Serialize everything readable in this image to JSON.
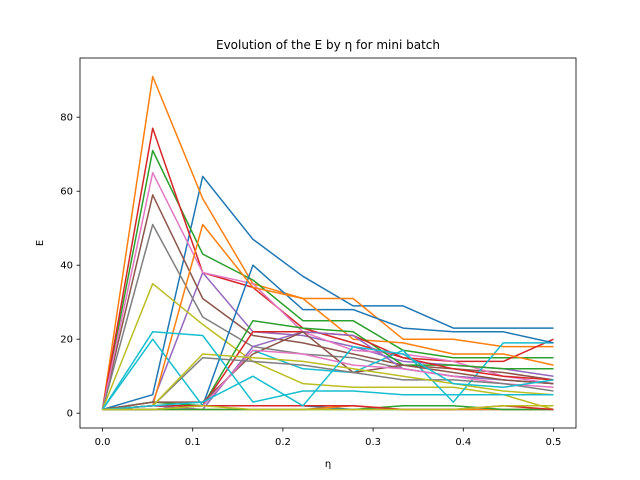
{
  "chart_data": {
    "type": "line",
    "title": "Evolution of the E by η for mini batch",
    "xlabel": "η",
    "ylabel": "E",
    "xlim": [
      -0.025,
      0.525
    ],
    "ylim": [
      -4,
      96
    ],
    "xticks": [
      0.0,
      0.1,
      0.2,
      0.3,
      0.4,
      0.5
    ],
    "xtick_labels": [
      "0.0",
      "0.1",
      "0.2",
      "0.3",
      "0.4",
      "0.5"
    ],
    "yticks": [
      0,
      20,
      40,
      60,
      80
    ],
    "ytick_labels": [
      "0",
      "20",
      "40",
      "60",
      "80"
    ],
    "grid": false,
    "x": [
      0.0,
      0.0556,
      0.1111,
      0.1667,
      0.2222,
      0.2778,
      0.3333,
      0.3889,
      0.4444,
      0.5
    ],
    "series": [
      {
        "color": "#1f77b4",
        "values": [
          1,
          5,
          64,
          47,
          37,
          29,
          29,
          23,
          23,
          23
        ]
      },
      {
        "color": "#ff7f0e",
        "values": [
          1,
          91,
          58,
          35,
          31,
          31,
          20,
          20,
          18,
          18
        ]
      },
      {
        "color": "#2ca02c",
        "values": [
          1,
          71,
          43,
          36,
          25,
          25,
          17,
          15,
          15,
          15
        ]
      },
      {
        "color": "#d62728",
        "values": [
          1,
          77,
          38,
          34,
          23,
          19,
          15,
          14,
          14,
          20
        ]
      },
      {
        "color": "#9467bd",
        "values": [
          1,
          3,
          38,
          22,
          21,
          18,
          14,
          13,
          12,
          10
        ]
      },
      {
        "color": "#8c564b",
        "values": [
          1,
          59,
          31,
          21,
          19,
          16,
          13,
          12,
          11,
          9
        ]
      },
      {
        "color": "#e377c2",
        "values": [
          1,
          65,
          38,
          35,
          22,
          17,
          16,
          14,
          10,
          8
        ]
      },
      {
        "color": "#7f7f7f",
        "values": [
          1,
          51,
          26,
          18,
          16,
          15,
          12,
          10,
          9,
          8
        ]
      },
      {
        "color": "#bcbd22",
        "values": [
          1,
          35,
          24,
          14,
          8,
          7,
          7,
          7,
          5,
          1
        ]
      },
      {
        "color": "#17becf",
        "values": [
          1,
          20,
          2,
          17,
          12,
          11,
          17,
          3,
          19,
          19
        ]
      },
      {
        "color": "#1f77b4",
        "values": [
          1,
          2,
          2,
          40,
          28,
          28,
          23,
          22,
          22,
          19
        ]
      },
      {
        "color": "#ff7f0e",
        "values": [
          1,
          2,
          51,
          34,
          31,
          20,
          19,
          16,
          16,
          13
        ]
      },
      {
        "color": "#2ca02c",
        "values": [
          1,
          3,
          2,
          25,
          23,
          22,
          13,
          13,
          12,
          12
        ]
      },
      {
        "color": "#d62728",
        "values": [
          1,
          1,
          2,
          22,
          22,
          21,
          15,
          12,
          10,
          9
        ]
      },
      {
        "color": "#9467bd",
        "values": [
          1,
          2,
          1,
          18,
          22,
          21,
          12,
          10,
          9,
          8
        ]
      },
      {
        "color": "#8c564b",
        "values": [
          1,
          3,
          3,
          16,
          22,
          11,
          13,
          11,
          9,
          8
        ]
      },
      {
        "color": "#e377c2",
        "values": [
          1,
          2,
          2,
          17,
          16,
          13,
          12,
          10,
          8,
          7
        ]
      },
      {
        "color": "#7f7f7f",
        "values": [
          1,
          2,
          15,
          14,
          13,
          11,
          9,
          9,
          8,
          6
        ]
      },
      {
        "color": "#bcbd22",
        "values": [
          1,
          2,
          16,
          15,
          14,
          12,
          10,
          8,
          6,
          5
        ]
      },
      {
        "color": "#17becf",
        "values": [
          1,
          22,
          21,
          3,
          6,
          6,
          5,
          5,
          5,
          5
        ]
      },
      {
        "color": "#1f77b4",
        "values": [
          1,
          1,
          2,
          2,
          2,
          1,
          1,
          1,
          1,
          1
        ]
      },
      {
        "color": "#ff7f0e",
        "values": [
          1,
          1,
          1,
          1,
          1,
          2,
          1,
          1,
          1,
          1
        ]
      },
      {
        "color": "#2ca02c",
        "values": [
          1,
          1,
          1,
          1,
          1,
          1,
          2,
          2,
          1,
          1
        ]
      },
      {
        "color": "#d62728",
        "values": [
          1,
          2,
          2,
          2,
          2,
          2,
          1,
          1,
          2,
          1
        ]
      },
      {
        "color": "#17becf",
        "values": [
          1,
          2,
          3,
          10,
          2,
          18,
          16,
          8,
          7,
          9
        ]
      },
      {
        "color": "#bcbd22",
        "values": [
          1,
          1,
          2,
          1,
          1,
          1,
          1,
          1,
          2,
          2
        ]
      }
    ]
  }
}
